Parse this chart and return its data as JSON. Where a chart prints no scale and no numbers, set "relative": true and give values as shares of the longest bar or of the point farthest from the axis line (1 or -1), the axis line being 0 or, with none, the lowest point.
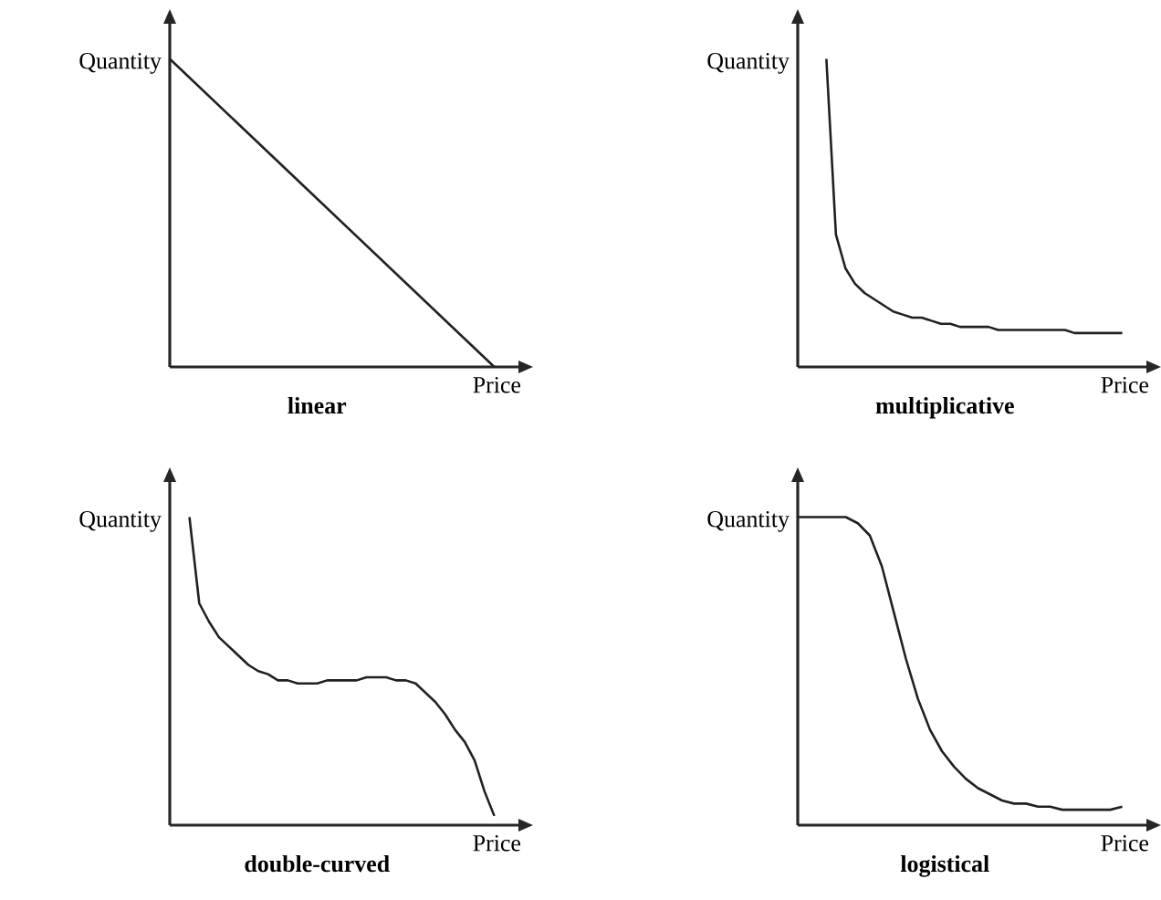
{
  "chart_data": [
    {
      "type": "line",
      "relative": true,
      "title": "linear",
      "xlabel": "Price",
      "ylabel": "Quantity",
      "categories": [
        null,
        null,
        null,
        null,
        null,
        null,
        null,
        null,
        null,
        null,
        null
      ],
      "series": [
        {
          "color": "#231f20",
          "values": [
            1,
            0.9,
            0.8,
            0.7,
            0.6,
            0.5,
            0.4,
            0.3,
            0.2,
            0.1,
            0
          ]
        }
      ]
    },
    {
      "type": "line",
      "relative": true,
      "title": "multiplicative",
      "xlabel": "Price",
      "ylabel": "Quantity",
      "categories": [
        null,
        null,
        null,
        null,
        null,
        null,
        null,
        null,
        null,
        null,
        null,
        null,
        null,
        null,
        null,
        null,
        null,
        null,
        null,
        null,
        null,
        null,
        null,
        null,
        null,
        null,
        null,
        null,
        null,
        null,
        null,
        null,
        null,
        null,
        null
      ],
      "series": [
        {
          "color": "#231f20",
          "values": [
            null,
            null,
            null,
            1,
            0.43,
            0.32,
            0.27,
            0.24,
            0.22,
            0.2,
            0.18,
            0.17,
            0.16,
            0.16,
            0.15,
            0.14,
            0.14,
            0.13,
            0.13,
            0.13,
            0.13,
            0.12,
            0.12,
            0.12,
            0.12,
            0.12,
            0.12,
            0.12,
            0.12,
            0.11,
            0.11,
            0.11,
            0.11,
            0.11,
            0.11
          ]
        }
      ]
    },
    {
      "type": "line",
      "relative": true,
      "title": "double-curved",
      "xlabel": "Price",
      "ylabel": "Quantity",
      "categories": [
        null,
        null,
        null,
        null,
        null,
        null,
        null,
        null,
        null,
        null,
        null,
        null,
        null,
        null,
        null,
        null,
        null,
        null,
        null,
        null,
        null,
        null,
        null,
        null,
        null,
        null,
        null,
        null,
        null,
        null,
        null,
        null,
        null,
        null
      ],
      "series": [
        {
          "color": "#231f20",
          "values": [
            null,
            null,
            1,
            0.72,
            0.66,
            0.61,
            0.58,
            0.55,
            0.52,
            0.5,
            0.49,
            0.47,
            0.47,
            0.46,
            0.46,
            0.46,
            0.47,
            0.47,
            0.47,
            0.47,
            0.48,
            0.48,
            0.48,
            0.47,
            0.47,
            0.46,
            0.43,
            0.4,
            0.36,
            0.31,
            0.27,
            0.21,
            0.11,
            0.03
          ]
        }
      ]
    },
    {
      "type": "line",
      "relative": true,
      "title": "logistical",
      "xlabel": "Price",
      "ylabel": "Quantity",
      "categories": [
        null,
        null,
        null,
        null,
        null,
        null,
        null,
        null,
        null,
        null,
        null,
        null,
        null,
        null,
        null,
        null,
        null,
        null,
        null,
        null,
        null,
        null,
        null,
        null,
        null,
        null,
        null,
        null
      ],
      "series": [
        {
          "color": "#231f20",
          "values": [
            1,
            1,
            1,
            1,
            1,
            0.98,
            0.94,
            0.84,
            0.69,
            0.54,
            0.41,
            0.31,
            0.24,
            0.19,
            0.15,
            0.12,
            0.1,
            0.08,
            0.07,
            0.07,
            0.06,
            0.06,
            0.05,
            0.05,
            0.05,
            0.05,
            0.05,
            0.06
          ]
        }
      ]
    }
  ]
}
